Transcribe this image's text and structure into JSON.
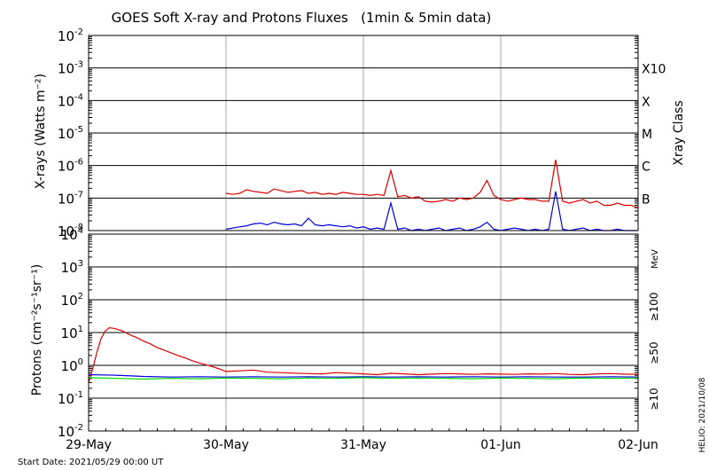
{
  "title": "GOES Soft X-ray and Protons Fluxes   (1min & 5min data)",
  "footer": {
    "start_date": "Start Date: 2021/05/29 00:00 UT",
    "stamp": "HELIO: 2021/10/08"
  },
  "colors": {
    "red": "#dd0000",
    "blue": "#0000dd",
    "green": "#00dd00",
    "gray": "#aaaaaa",
    "axis": "#000000"
  },
  "chart_data": [
    {
      "type": "line",
      "panel": "xray",
      "ylabel": "X-rays (Watts m⁻²)",
      "y_scale": "log",
      "ylim": [
        1e-08,
        0.01
      ],
      "y_ticks": [
        {
          "value": 0.01,
          "base": "10",
          "exp": "-2"
        },
        {
          "value": 0.001,
          "base": "10",
          "exp": "-3"
        },
        {
          "value": 0.0001,
          "base": "10",
          "exp": "-4"
        },
        {
          "value": 1e-05,
          "base": "10",
          "exp": "-5"
        },
        {
          "value": 1e-06,
          "base": "10",
          "exp": "-6"
        },
        {
          "value": 1e-07,
          "base": "10",
          "exp": "-7"
        },
        {
          "value": 1e-08,
          "base": "10",
          "exp": "-8"
        }
      ],
      "right_axis_label": "Xray Class",
      "classes": [
        {
          "label": "X10",
          "value": 0.001
        },
        {
          "label": "X",
          "value": 0.0001
        },
        {
          "label": "M",
          "value": 1e-05
        },
        {
          "label": "C",
          "value": 1e-06
        },
        {
          "label": "B",
          "value": 1e-07
        }
      ],
      "series": [
        {
          "color": "#dd0000",
          "x": [
            1.0,
            1.05,
            1.1,
            1.15,
            1.2,
            1.25,
            1.3,
            1.35,
            1.4,
            1.45,
            1.5,
            1.55,
            1.6,
            1.65,
            1.7,
            1.75,
            1.8,
            1.85,
            1.9,
            1.95,
            2.0,
            2.05,
            2.1,
            2.15,
            2.2,
            2.25,
            2.3,
            2.35,
            2.4,
            2.45,
            2.5,
            2.55,
            2.6,
            2.65,
            2.7,
            2.75,
            2.8,
            2.85,
            2.9,
            2.95,
            3.0,
            3.05,
            3.1,
            3.15,
            3.2,
            3.25,
            3.3,
            3.35,
            3.4,
            3.45,
            3.5,
            3.55,
            3.6,
            3.65,
            3.7,
            3.75,
            3.8,
            3.85,
            3.9,
            3.95,
            4.0
          ],
          "y": [
            1.4e-07,
            1.3e-07,
            1.4e-07,
            1.8e-07,
            1.6e-07,
            1.5e-07,
            1.4e-07,
            1.9e-07,
            1.7e-07,
            1.5e-07,
            1.6e-07,
            1.7e-07,
            1.4e-07,
            1.5e-07,
            1.3e-07,
            1.4e-07,
            1.3e-07,
            1.5e-07,
            1.4e-07,
            1.3e-07,
            1.3e-07,
            1.2e-07,
            1.3e-07,
            1.2e-07,
            7e-07,
            1.1e-07,
            1.2e-07,
            1e-07,
            1.1e-07,
            8e-08,
            7.5e-08,
            8e-08,
            9e-08,
            8e-08,
            1e-07,
            9e-08,
            1e-07,
            1.5e-07,
            3.5e-07,
            1.2e-07,
            9e-08,
            8e-08,
            9e-08,
            1e-07,
            9e-08,
            9e-08,
            8e-08,
            8e-08,
            1.5e-06,
            8e-08,
            7e-08,
            8e-08,
            9e-08,
            7e-08,
            8e-08,
            6e-08,
            6e-08,
            7e-08,
            6e-08,
            6e-08,
            5e-08
          ]
        },
        {
          "color": "#0000dd",
          "x": [
            1.0,
            1.05,
            1.1,
            1.15,
            1.2,
            1.25,
            1.3,
            1.35,
            1.4,
            1.45,
            1.5,
            1.55,
            1.6,
            1.65,
            1.7,
            1.75,
            1.8,
            1.85,
            1.9,
            1.95,
            2.0,
            2.05,
            2.1,
            2.15,
            2.2,
            2.25,
            2.3,
            2.35,
            2.4,
            2.45,
            2.5,
            2.55,
            2.6,
            2.65,
            2.7,
            2.75,
            2.8,
            2.85,
            2.9,
            2.95,
            3.0,
            3.05,
            3.1,
            3.15,
            3.2,
            3.25,
            3.3,
            3.35,
            3.4,
            3.45,
            3.5,
            3.55,
            3.6,
            3.65,
            3.7,
            3.75,
            3.8,
            3.85,
            3.9,
            3.95,
            4.0
          ],
          "y": [
            1.1e-08,
            1.2e-08,
            1.3e-08,
            1.4e-08,
            1.6e-08,
            1.7e-08,
            1.5e-08,
            1.8e-08,
            1.6e-08,
            1.5e-08,
            1.6e-08,
            1.4e-08,
            2.4e-08,
            1.5e-08,
            1.4e-08,
            1.5e-08,
            1.4e-08,
            1.3e-08,
            1.4e-08,
            1.2e-08,
            1.3e-08,
            1.1e-08,
            1.2e-08,
            1.1e-08,
            7e-08,
            1.1e-08,
            1.2e-08,
            1e-08,
            1.1e-08,
            1e-08,
            1.1e-08,
            1.2e-08,
            1e-08,
            1.1e-08,
            1.2e-08,
            1e-08,
            1.1e-08,
            1.3e-08,
            1.8e-08,
            1.1e-08,
            1e-08,
            1.1e-08,
            1.2e-08,
            1.1e-08,
            1e-08,
            1.1e-08,
            1e-08,
            1.1e-08,
            1.6e-07,
            1.1e-08,
            1e-08,
            1.1e-08,
            1.2e-08,
            1e-08,
            1.1e-08,
            1e-08,
            1e-08,
            1.1e-08,
            1e-08,
            1e-08,
            1e-08
          ]
        }
      ]
    },
    {
      "type": "line",
      "panel": "protons",
      "ylabel": "Protons (cm⁻²s⁻¹sr⁻¹)",
      "y_scale": "log",
      "ylim": [
        0.01,
        10000
      ],
      "y_ticks": [
        {
          "value": 10000,
          "base": "10",
          "exp": "4"
        },
        {
          "value": 1000,
          "base": "10",
          "exp": "3"
        },
        {
          "value": 100,
          "base": "10",
          "exp": "2"
        },
        {
          "value": 10,
          "base": "10",
          "exp": "1"
        },
        {
          "value": 1,
          "base": "10",
          "exp": "0"
        },
        {
          "value": 0.1,
          "base": "10",
          "exp": "-1"
        },
        {
          "value": 0.01,
          "base": "10",
          "exp": "-2"
        }
      ],
      "threshold": 10,
      "unit_label": "MeV",
      "legend": [
        {
          "label": "≥10",
          "color": "#dd0000"
        },
        {
          "label": "≥50",
          "color": "#0000dd"
        },
        {
          "label": "≥100",
          "color": "#00dd00"
        }
      ],
      "series": [
        {
          "color": "#dd0000",
          "x": [
            0.0,
            0.03,
            0.06,
            0.09,
            0.12,
            0.15,
            0.18,
            0.21,
            0.24,
            0.27,
            0.3,
            0.35,
            0.4,
            0.45,
            0.5,
            0.55,
            0.6,
            0.65,
            0.7,
            0.75,
            0.8,
            0.85,
            0.9,
            0.95,
            1.0,
            1.1,
            1.2,
            1.3,
            1.4,
            1.5,
            1.6,
            1.7,
            1.8,
            1.9,
            2.0,
            2.1,
            2.2,
            2.3,
            2.4,
            2.5,
            2.6,
            2.7,
            2.8,
            2.9,
            3.0,
            3.1,
            3.2,
            3.3,
            3.4,
            3.5,
            3.6,
            3.7,
            3.8,
            3.9,
            4.0
          ],
          "y": [
            0.3,
            0.8,
            2.5,
            6.5,
            11,
            14,
            13.5,
            12.5,
            11.5,
            10,
            8.5,
            7,
            5.5,
            4.5,
            3.5,
            2.9,
            2.4,
            2.0,
            1.7,
            1.4,
            1.2,
            1.05,
            0.92,
            0.78,
            0.65,
            0.68,
            0.72,
            0.62,
            0.6,
            0.58,
            0.56,
            0.55,
            0.6,
            0.58,
            0.55,
            0.52,
            0.57,
            0.55,
            0.52,
            0.54,
            0.56,
            0.55,
            0.53,
            0.55,
            0.54,
            0.53,
            0.55,
            0.54,
            0.56,
            0.53,
            0.52,
            0.55,
            0.56,
            0.54,
            0.53
          ]
        },
        {
          "color": "#0000dd",
          "x": [
            0.0,
            0.2,
            0.4,
            0.6,
            0.8,
            1.0,
            1.2,
            1.4,
            1.6,
            1.8,
            2.0,
            2.2,
            2.4,
            2.6,
            2.8,
            3.0,
            3.2,
            3.4,
            3.6,
            3.8,
            4.0
          ],
          "y": [
            0.52,
            0.5,
            0.46,
            0.44,
            0.45,
            0.44,
            0.45,
            0.44,
            0.45,
            0.44,
            0.45,
            0.44,
            0.45,
            0.44,
            0.45,
            0.44,
            0.45,
            0.44,
            0.44,
            0.45,
            0.44
          ]
        },
        {
          "color": "#00dd00",
          "x": [
            0.0,
            0.2,
            0.4,
            0.6,
            0.8,
            1.0,
            1.2,
            1.4,
            1.6,
            1.8,
            2.0,
            2.2,
            2.4,
            2.6,
            2.8,
            3.0,
            3.2,
            3.4,
            3.6,
            3.8,
            4.0
          ],
          "y": [
            0.42,
            0.4,
            0.38,
            0.4,
            0.39,
            0.41,
            0.4,
            0.39,
            0.41,
            0.4,
            0.42,
            0.4,
            0.41,
            0.4,
            0.39,
            0.41,
            0.4,
            0.39,
            0.41,
            0.4,
            0.41
          ]
        }
      ]
    }
  ],
  "x_axis": {
    "xlim": [
      0,
      4
    ],
    "ticks": [
      {
        "value": 0,
        "label": "29-May"
      },
      {
        "value": 1,
        "label": "30-May"
      },
      {
        "value": 2,
        "label": "31-May"
      },
      {
        "value": 3,
        "label": "01-Jun"
      },
      {
        "value": 4,
        "label": "02-Jun"
      }
    ]
  }
}
